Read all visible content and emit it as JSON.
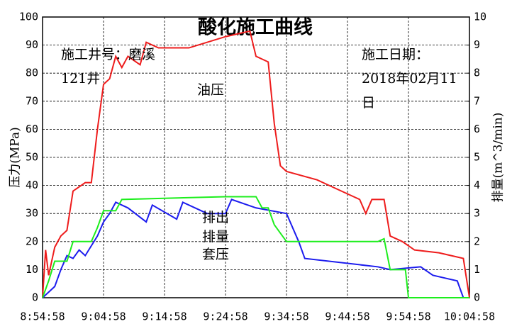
{
  "chart_data": {
    "type": "line",
    "title": "酸化施工曲线",
    "ylabel": "压力(MPa)",
    "y2label": "排量(m^3/min)",
    "annotations": [
      {
        "text": "施工井号：磨溪",
        "color": "#000000"
      },
      {
        "text": "121井",
        "color": "#000000"
      },
      {
        "text": "施工日期：",
        "color": "#000000"
      },
      {
        "text": "2018年02月11",
        "color": "#000000"
      },
      {
        "text": "日",
        "color": "#000000"
      },
      {
        "text": "油压",
        "color": "#ff2a2a"
      },
      {
        "text": "排出",
        "color": "#22ee22"
      },
      {
        "text": "排量",
        "color": "#22ee22"
      },
      {
        "text": "套压",
        "color": "#2a2aee"
      }
    ],
    "xlim": [
      "8:54:58",
      "10:04:58"
    ],
    "xticks": [
      "8:54:58",
      "9:04:58",
      "9:14:58",
      "9:24:58",
      "9:34:58",
      "9:44:58",
      "9:54:58",
      "10:04:58"
    ],
    "ylim": [
      0,
      100
    ],
    "yticks": [
      0,
      10,
      20,
      30,
      40,
      50,
      60,
      70,
      80,
      90,
      100
    ],
    "y2lim": [
      0,
      10
    ],
    "y2ticks": [
      0,
      1,
      2,
      3,
      4,
      5,
      6,
      7,
      8,
      9,
      10
    ],
    "grid": true,
    "series": [
      {
        "name": "油压",
        "color": "#ee1c1c",
        "x": [
          "8:54:58",
          "8:55:28",
          "8:55:58",
          "8:56:58",
          "8:57:58",
          "8:58:58",
          "8:59:58",
          "9:01:58",
          "9:02:58",
          "9:03:58",
          "9:04:58",
          "9:05:58",
          "9:06:58",
          "9:07:58",
          "9:08:58",
          "9:10:58",
          "9:11:58",
          "9:13:58",
          "9:18:58",
          "9:24:58",
          "9:28:58",
          "9:29:58",
          "9:31:58",
          "9:32:58",
          "9:33:58",
          "9:34:58",
          "9:39:58",
          "9:41:58",
          "9:44:58",
          "9:46:58",
          "9:47:58",
          "9:48:58",
          "9:50:58",
          "9:51:58",
          "9:53:58",
          "9:55:58",
          "9:59:58",
          "10:03:58",
          "10:04:58"
        ],
        "values": [
          0,
          17,
          8,
          18,
          22,
          24,
          38,
          41,
          41,
          60,
          76,
          78,
          86,
          82,
          86,
          83,
          91,
          89,
          89,
          93,
          95,
          86,
          84,
          62,
          47,
          45,
          42,
          40,
          37,
          35,
          30,
          35,
          35,
          22,
          20,
          17,
          16,
          14,
          0
        ]
      },
      {
        "name": "套压",
        "color": "#1c1cee",
        "x": [
          "8:54:58",
          "8:55:58",
          "8:56:58",
          "8:57:58",
          "8:58:58",
          "8:59:58",
          "9:00:58",
          "9:01:58",
          "9:03:58",
          "9:04:58",
          "9:05:58",
          "9:06:58",
          "9:08:58",
          "9:11:58",
          "9:12:58",
          "9:16:58",
          "9:17:58",
          "9:21:58",
          "9:24:58",
          "9:25:58",
          "9:29:58",
          "9:34:58",
          "9:36:58",
          "9:37:58",
          "9:49:58",
          "9:51:58",
          "9:56:58",
          "9:58:58",
          "10:02:58",
          "10:03:58"
        ],
        "values": [
          0,
          2,
          4,
          10,
          15,
          14,
          17,
          15,
          22,
          27,
          30,
          34,
          32,
          27,
          33,
          28,
          34,
          30,
          30,
          35,
          32,
          30,
          20,
          14,
          11,
          10,
          11,
          8,
          6,
          0
        ]
      },
      {
        "name": "排量",
        "color": "#1cee1c",
        "axis": "y2",
        "x": [
          "8:54:58",
          "8:55:58",
          "8:56:58",
          "8:58:58",
          "8:59:58",
          "9:02:58",
          "9:03:58",
          "9:04:58",
          "9:06:58",
          "9:07:58",
          "9:24:58",
          "9:29:58",
          "9:30:58",
          "9:31:58",
          "9:32:58",
          "9:34:58",
          "9:49:58",
          "9:50:58",
          "9:51:58",
          "9:54:28",
          "9:54:58",
          "10:04:58"
        ],
        "values": [
          0,
          0.6,
          1.3,
          1.3,
          2.0,
          2.0,
          2.5,
          3.1,
          3.1,
          3.5,
          3.6,
          3.6,
          3.2,
          3.2,
          2.6,
          2.0,
          2.0,
          2.1,
          1.0,
          1.0,
          0,
          0
        ]
      }
    ]
  }
}
